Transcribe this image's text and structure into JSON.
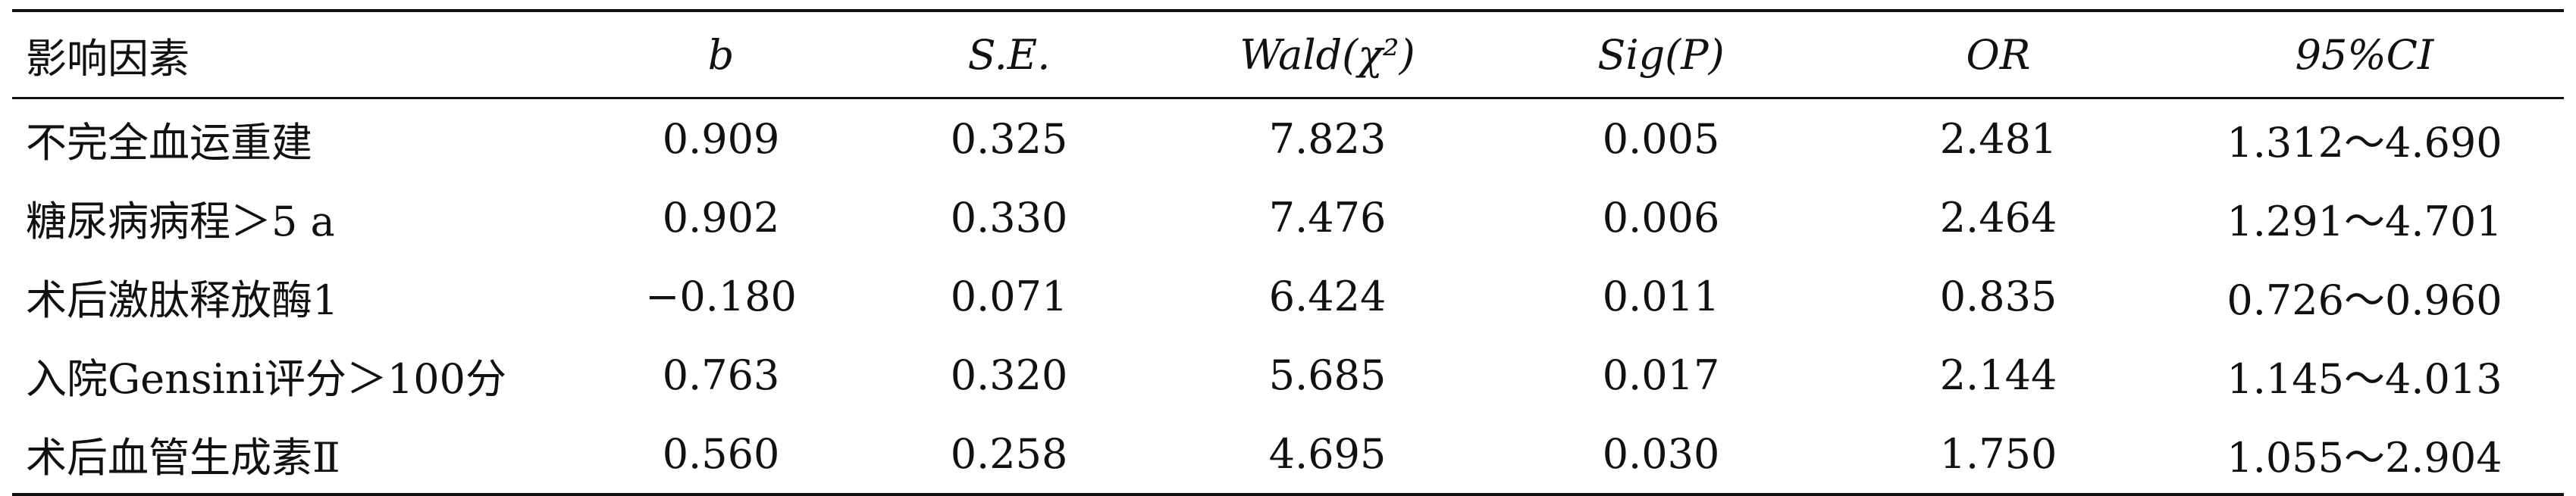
{
  "table": {
    "headers": {
      "factor": "影响因素",
      "b": "b",
      "se": "S.E.",
      "wald": "Wald(χ²)",
      "sig": "Sig(P)",
      "or": "OR",
      "ci": "95%CI"
    },
    "rows": [
      {
        "factor": "不完全血运重建",
        "b": "0.909",
        "se": "0.325",
        "wald": "7.823",
        "sig": "0.005",
        "or": "2.481",
        "ci": "1.312～4.690"
      },
      {
        "factor": "糖尿病病程＞5 a",
        "b": "0.902",
        "se": "0.330",
        "wald": "7.476",
        "sig": "0.006",
        "or": "2.464",
        "ci": "1.291～4.701"
      },
      {
        "factor": "术后激肽释放酶1",
        "b": "−0.180",
        "se": "0.071",
        "wald": "6.424",
        "sig": "0.011",
        "or": "0.835",
        "ci": "0.726～0.960"
      },
      {
        "factor": "入院Gensini评分＞100分",
        "b": "0.763",
        "se": "0.320",
        "wald": "5.685",
        "sig": "0.017",
        "or": "2.144",
        "ci": "1.145～4.013"
      },
      {
        "factor": "术后血管生成素Ⅱ",
        "b": "0.560",
        "se": "0.258",
        "wald": "4.695",
        "sig": "0.030",
        "or": "1.750",
        "ci": "1.055～2.904"
      }
    ]
  }
}
